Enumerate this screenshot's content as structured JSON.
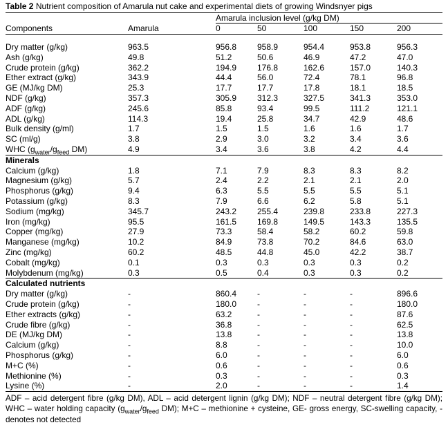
{
  "title": {
    "label": "Table 2",
    "caption": "Nutrient composition of Amarula nut cake and experimental diets of growing Windsnyer pigs"
  },
  "table": {
    "span_header": "Amarula inclusion level (g/kg DM)",
    "columns": [
      "Components",
      "Amarula",
      "0",
      "50",
      "100",
      "150",
      "200"
    ],
    "sections": [
      {
        "header": null,
        "rows": [
          {
            "label": "Dry matter (g/kg)",
            "values": [
              "963.5",
              "956.8",
              "958.9",
              "954.4",
              "953.8",
              "956.3"
            ]
          },
          {
            "label": "Ash (g/kg)",
            "values": [
              "49.8",
              "51.2",
              "50.6",
              "46.9",
              "47.2",
              "47.0"
            ]
          },
          {
            "label": "Crude protein (g/kg)",
            "values": [
              "362.2",
              "194.9",
              "176.8",
              "162.6",
              "157.0",
              "140.3"
            ]
          },
          {
            "label": "Ether extract (g/kg)",
            "values": [
              "343.9",
              "44.4",
              "56.0",
              "72.4",
              "78.1",
              "96.8"
            ]
          },
          {
            "label": "GE (MJ/kg DM)",
            "values": [
              "25.3",
              "17.7",
              "17.7",
              "17.8",
              "18.1",
              "18.5"
            ]
          },
          {
            "label": "NDF (g/kg)",
            "values": [
              "357.3",
              "305.9",
              "312.3",
              "327.5",
              "341.3",
              "353.0"
            ]
          },
          {
            "label": "ADF (g/kg)",
            "values": [
              "245.6",
              "85.8",
              "93.4",
              "99.5",
              "111.2",
              "121.1"
            ]
          },
          {
            "label": "ADL (g/kg)",
            "values": [
              "114.3",
              "19.4",
              "25.8",
              "34.7",
              "42.9",
              "48.6"
            ]
          },
          {
            "label": "Bulk density (g/ml)",
            "values": [
              "1.7",
              "1.5",
              "1.5",
              "1.6",
              "1.6",
              "1.7"
            ]
          },
          {
            "label": "SC (ml/g)",
            "values": [
              "3.8",
              "2.9",
              "3.0",
              "3.2",
              "3.4",
              "3.6"
            ]
          },
          {
            "label_parts": [
              {
                "t": "WHC (g"
              },
              {
                "t": "water",
                "sub": true
              },
              {
                "t": "/g"
              },
              {
                "t": "feed",
                "sub": true
              },
              {
                "t": " DM)"
              }
            ],
            "values": [
              "4.9",
              "3.4",
              "3.6",
              "3.8",
              "4.2",
              "4.4"
            ]
          }
        ]
      },
      {
        "header": "Minerals",
        "rows": [
          {
            "label": "Calcium (g/kg)",
            "values": [
              "1.8",
              "7.1",
              "7.9",
              "8.3",
              "8.3",
              "8.2"
            ]
          },
          {
            "label": "Magnesium (g/kg)",
            "values": [
              "5.7",
              "2.4",
              "2.2",
              "2.1",
              "2.1",
              "2.0"
            ]
          },
          {
            "label": "Phosphorus (g/kg)",
            "values": [
              "9.4",
              "6.3",
              "5.5",
              "5.5",
              "5.5",
              "5.1"
            ]
          },
          {
            "label": "Potassium (g/kg)",
            "values": [
              "8.3",
              "7.9",
              "6.6",
              "6.2",
              "5.8",
              "5.1"
            ]
          },
          {
            "label": "Sodium (mg/kg)",
            "values": [
              "345.7",
              "243.2",
              "255.4",
              "239.8",
              "233.8",
              "227.3"
            ]
          },
          {
            "label": "Iron (mg/kg)",
            "values": [
              "95.5",
              "161.5",
              "169.8",
              "149.5",
              "143.3",
              "135.5"
            ]
          },
          {
            "label": "Copper (mg/kg)",
            "values": [
              "27.9",
              "73.3",
              "58.4",
              "58.2",
              "60.2",
              "59.8"
            ]
          },
          {
            "label": "Manganese (mg/kg)",
            "values": [
              "10.2",
              "84.9",
              "73.8",
              "70.2",
              "84.6",
              "63.0"
            ]
          },
          {
            "label": "Zinc (mg/kg)",
            "values": [
              "60.2",
              "48.5",
              "44.8",
              "45.0",
              "42.2",
              "38.7"
            ]
          },
          {
            "label": "Cobalt (mg/kg)",
            "values": [
              "0.1",
              "0.3",
              "0.3",
              "0.3",
              "0.3",
              "0.2"
            ]
          },
          {
            "label": "Molybdenum (mg/kg)",
            "values": [
              "0.3",
              "0.5",
              "0.4",
              "0.3",
              "0.3",
              "0.2"
            ]
          }
        ]
      },
      {
        "header": "Calculated nutrients",
        "rows": [
          {
            "label": "Dry matter (g/kg)",
            "values": [
              "-",
              "860.4",
              "-",
              "-",
              "-",
              "896.6"
            ]
          },
          {
            "label": "Crude protein (g/kg)",
            "values": [
              "-",
              "180.0",
              "-",
              "-",
              "-",
              "180.0"
            ]
          },
          {
            "label": "Ether extracts (g/kg)",
            "values": [
              "-",
              "63.2",
              "-",
              "-",
              "-",
              "87.6"
            ]
          },
          {
            "label": "Crude fibre (g/kg)",
            "values": [
              "-",
              "36.8",
              "-",
              "-",
              "-",
              "62.5"
            ]
          },
          {
            "label": "DE (MJ/kg DM)",
            "values": [
              "-",
              "13.8",
              "-",
              "-",
              "-",
              "13.8"
            ]
          },
          {
            "label": "Calcium (g/kg)",
            "values": [
              "-",
              "8.8",
              "-",
              "-",
              "-",
              "10.0"
            ]
          },
          {
            "label": "Phosphorus (g/kg)",
            "values": [
              "-",
              "6.0",
              "-",
              "-",
              "-",
              "6.0"
            ]
          },
          {
            "label": "M+C (%)",
            "values": [
              "-",
              "0.6",
              "-",
              "-",
              "-",
              "0.6"
            ]
          },
          {
            "label": "Methionine (%)",
            "values": [
              "-",
              "0.3",
              "-",
              "-",
              "-",
              "0.3"
            ]
          },
          {
            "label": "Lysine (%)",
            "values": [
              "-",
              "2.0",
              "-",
              "-",
              "-",
              "1.4"
            ]
          }
        ]
      }
    ]
  },
  "footnote_parts": [
    {
      "t": "ADF – acid detergent fibre (g/kg DM), ADL – acid detergent lignin (g/kg DM); NDF – neutral detergent fibre (g/kg DM); WHC – water holding capacity (g"
    },
    {
      "t": "water",
      "sub": true
    },
    {
      "t": "/g"
    },
    {
      "t": "feed",
      "sub": true
    },
    {
      "t": " DM); M+C – methionine + cysteine, GE- gross energy, SC-swelling capacity, - denotes not detected"
    }
  ]
}
